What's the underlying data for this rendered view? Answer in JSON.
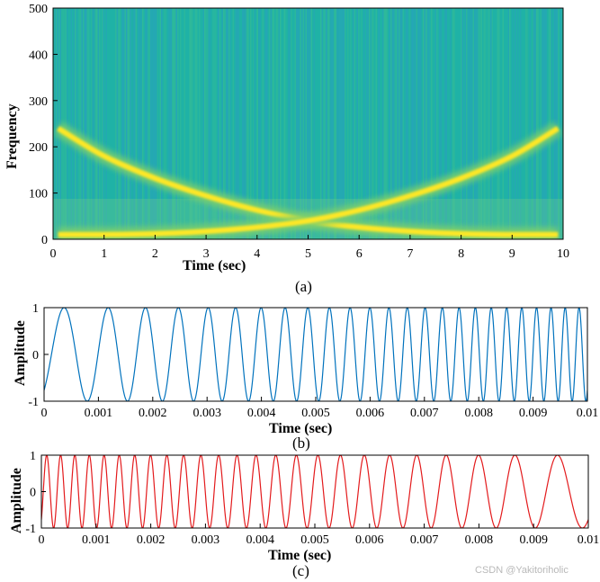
{
  "chart_data": [
    {
      "type": "heatmap",
      "title": "",
      "caption": "(a)",
      "xlabel": "Time (sec)",
      "ylabel": "Frequency",
      "xlim": [
        0,
        10
      ],
      "ylim": [
        0,
        500
      ],
      "xticks": [
        0,
        1,
        2,
        3,
        4,
        5,
        6,
        7,
        8,
        9,
        10
      ],
      "yticks": [
        0,
        100,
        200,
        300,
        400,
        500
      ],
      "colormap": {
        "background": "#1fb1a6",
        "mid": "#7ccf6e",
        "peak": "#fde725"
      },
      "series": [
        {
          "name": "downward chirp",
          "x": [
            0.1,
            1,
            2,
            3,
            4,
            5,
            6,
            7,
            8,
            9,
            9.9
          ],
          "y": [
            240,
            180,
            132,
            94,
            63,
            40,
            26,
            17,
            12,
            10,
            10
          ]
        },
        {
          "name": "upward chirp",
          "x": [
            0.1,
            1,
            2,
            3,
            4,
            5,
            6,
            7,
            8,
            9,
            9.9
          ],
          "y": [
            10,
            10,
            12,
            17,
            26,
            40,
            63,
            94,
            132,
            180,
            240
          ]
        }
      ]
    },
    {
      "type": "line",
      "title": "",
      "caption": "(b)",
      "xlabel": "Time (sec)",
      "ylabel": "Amplitude",
      "xlim": [
        0,
        0.01
      ],
      "ylim": [
        -1,
        1
      ],
      "xticks": [
        0,
        0.001,
        0.002,
        0.003,
        0.004,
        0.005,
        0.006,
        0.007,
        0.008,
        0.009,
        0.01
      ],
      "xtick_labels": [
        "0",
        "0.001",
        "0.002",
        "0.003",
        "0.004",
        "0.005",
        "0.006",
        "0.007",
        "0.008",
        "0.009",
        "0.01"
      ],
      "yticks": [
        -1,
        0,
        1
      ],
      "color": "#0072bd",
      "series": [
        {
          "name": "up-chirp",
          "f0_hz": 1000,
          "f1_hz": 4000,
          "phase_deg": -140
        }
      ]
    },
    {
      "type": "line",
      "title": "",
      "caption": "(c)",
      "xlabel": "Time (sec)",
      "ylabel": "Amplitude",
      "xlim": [
        0,
        0.01
      ],
      "ylim": [
        -1,
        1
      ],
      "xticks": [
        0,
        0.001,
        0.002,
        0.003,
        0.004,
        0.005,
        0.006,
        0.007,
        0.008,
        0.009,
        0.01
      ],
      "xtick_labels": [
        "0",
        "0.001",
        "0.002",
        "0.003",
        "0.004",
        "0.005",
        "0.006",
        "0.007",
        "0.008",
        "0.009",
        "0.01"
      ],
      "yticks": [
        -1,
        0,
        1
      ],
      "color": "#e31a1c",
      "series": [
        {
          "name": "down-chirp",
          "f0_hz": 4000,
          "f1_hz": 1000,
          "phase_deg": -140
        }
      ]
    }
  ],
  "watermark": "CSDN @Yakitoriholic"
}
